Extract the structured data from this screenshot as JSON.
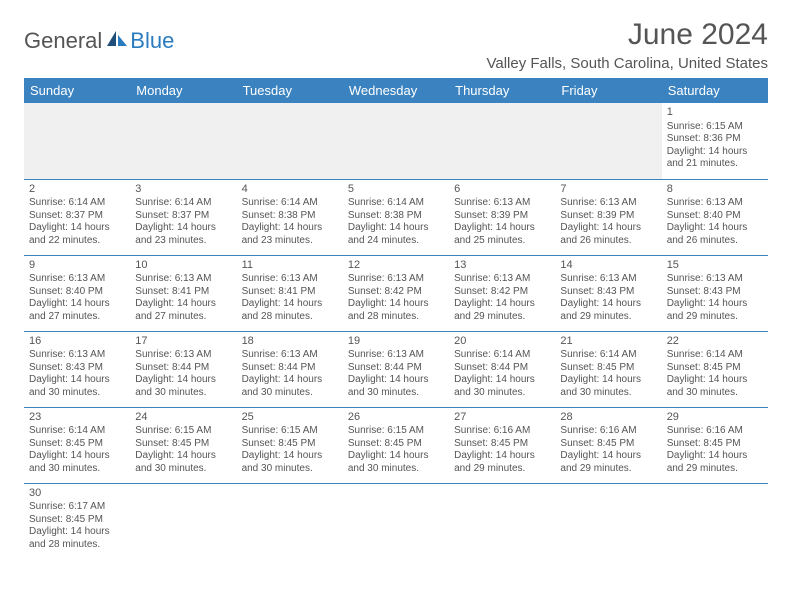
{
  "logo": {
    "general": "General",
    "blue": "Blue"
  },
  "title": "June 2024",
  "location": "Valley Falls, South Carolina, United States",
  "colors": {
    "header_bg": "#3b83c0",
    "header_text": "#ffffff",
    "body_text": "#555555",
    "rule": "#3b83c0",
    "logo_accent": "#2b7bbf"
  },
  "typography": {
    "title_fontsize": 30,
    "location_fontsize": 15,
    "dayheader_fontsize": 13,
    "cell_fontsize": 10,
    "daynum_fontsize": 11
  },
  "day_headers": [
    "Sunday",
    "Monday",
    "Tuesday",
    "Wednesday",
    "Thursday",
    "Friday",
    "Saturday"
  ],
  "weeks": [
    [
      null,
      null,
      null,
      null,
      null,
      null,
      {
        "n": "1",
        "sr": "6:15 AM",
        "ss": "8:36 PM",
        "dl1": "14 hours",
        "dl2": "and 21 minutes."
      }
    ],
    [
      {
        "n": "2",
        "sr": "6:14 AM",
        "ss": "8:37 PM",
        "dl1": "14 hours",
        "dl2": "and 22 minutes."
      },
      {
        "n": "3",
        "sr": "6:14 AM",
        "ss": "8:37 PM",
        "dl1": "14 hours",
        "dl2": "and 23 minutes."
      },
      {
        "n": "4",
        "sr": "6:14 AM",
        "ss": "8:38 PM",
        "dl1": "14 hours",
        "dl2": "and 23 minutes."
      },
      {
        "n": "5",
        "sr": "6:14 AM",
        "ss": "8:38 PM",
        "dl1": "14 hours",
        "dl2": "and 24 minutes."
      },
      {
        "n": "6",
        "sr": "6:13 AM",
        "ss": "8:39 PM",
        "dl1": "14 hours",
        "dl2": "and 25 minutes."
      },
      {
        "n": "7",
        "sr": "6:13 AM",
        "ss": "8:39 PM",
        "dl1": "14 hours",
        "dl2": "and 26 minutes."
      },
      {
        "n": "8",
        "sr": "6:13 AM",
        "ss": "8:40 PM",
        "dl1": "14 hours",
        "dl2": "and 26 minutes."
      }
    ],
    [
      {
        "n": "9",
        "sr": "6:13 AM",
        "ss": "8:40 PM",
        "dl1": "14 hours",
        "dl2": "and 27 minutes."
      },
      {
        "n": "10",
        "sr": "6:13 AM",
        "ss": "8:41 PM",
        "dl1": "14 hours",
        "dl2": "and 27 minutes."
      },
      {
        "n": "11",
        "sr": "6:13 AM",
        "ss": "8:41 PM",
        "dl1": "14 hours",
        "dl2": "and 28 minutes."
      },
      {
        "n": "12",
        "sr": "6:13 AM",
        "ss": "8:42 PM",
        "dl1": "14 hours",
        "dl2": "and 28 minutes."
      },
      {
        "n": "13",
        "sr": "6:13 AM",
        "ss": "8:42 PM",
        "dl1": "14 hours",
        "dl2": "and 29 minutes."
      },
      {
        "n": "14",
        "sr": "6:13 AM",
        "ss": "8:43 PM",
        "dl1": "14 hours",
        "dl2": "and 29 minutes."
      },
      {
        "n": "15",
        "sr": "6:13 AM",
        "ss": "8:43 PM",
        "dl1": "14 hours",
        "dl2": "and 29 minutes."
      }
    ],
    [
      {
        "n": "16",
        "sr": "6:13 AM",
        "ss": "8:43 PM",
        "dl1": "14 hours",
        "dl2": "and 30 minutes."
      },
      {
        "n": "17",
        "sr": "6:13 AM",
        "ss": "8:44 PM",
        "dl1": "14 hours",
        "dl2": "and 30 minutes."
      },
      {
        "n": "18",
        "sr": "6:13 AM",
        "ss": "8:44 PM",
        "dl1": "14 hours",
        "dl2": "and 30 minutes."
      },
      {
        "n": "19",
        "sr": "6:13 AM",
        "ss": "8:44 PM",
        "dl1": "14 hours",
        "dl2": "and 30 minutes."
      },
      {
        "n": "20",
        "sr": "6:14 AM",
        "ss": "8:44 PM",
        "dl1": "14 hours",
        "dl2": "and 30 minutes."
      },
      {
        "n": "21",
        "sr": "6:14 AM",
        "ss": "8:45 PM",
        "dl1": "14 hours",
        "dl2": "and 30 minutes."
      },
      {
        "n": "22",
        "sr": "6:14 AM",
        "ss": "8:45 PM",
        "dl1": "14 hours",
        "dl2": "and 30 minutes."
      }
    ],
    [
      {
        "n": "23",
        "sr": "6:14 AM",
        "ss": "8:45 PM",
        "dl1": "14 hours",
        "dl2": "and 30 minutes."
      },
      {
        "n": "24",
        "sr": "6:15 AM",
        "ss": "8:45 PM",
        "dl1": "14 hours",
        "dl2": "and 30 minutes."
      },
      {
        "n": "25",
        "sr": "6:15 AM",
        "ss": "8:45 PM",
        "dl1": "14 hours",
        "dl2": "and 30 minutes."
      },
      {
        "n": "26",
        "sr": "6:15 AM",
        "ss": "8:45 PM",
        "dl1": "14 hours",
        "dl2": "and 30 minutes."
      },
      {
        "n": "27",
        "sr": "6:16 AM",
        "ss": "8:45 PM",
        "dl1": "14 hours",
        "dl2": "and 29 minutes."
      },
      {
        "n": "28",
        "sr": "6:16 AM",
        "ss": "8:45 PM",
        "dl1": "14 hours",
        "dl2": "and 29 minutes."
      },
      {
        "n": "29",
        "sr": "6:16 AM",
        "ss": "8:45 PM",
        "dl1": "14 hours",
        "dl2": "and 29 minutes."
      }
    ],
    [
      {
        "n": "30",
        "sr": "6:17 AM",
        "ss": "8:45 PM",
        "dl1": "14 hours",
        "dl2": "and 28 minutes."
      },
      null,
      null,
      null,
      null,
      null,
      null
    ]
  ],
  "labels": {
    "sunrise": "Sunrise: ",
    "sunset": "Sunset: ",
    "daylight": "Daylight: "
  }
}
